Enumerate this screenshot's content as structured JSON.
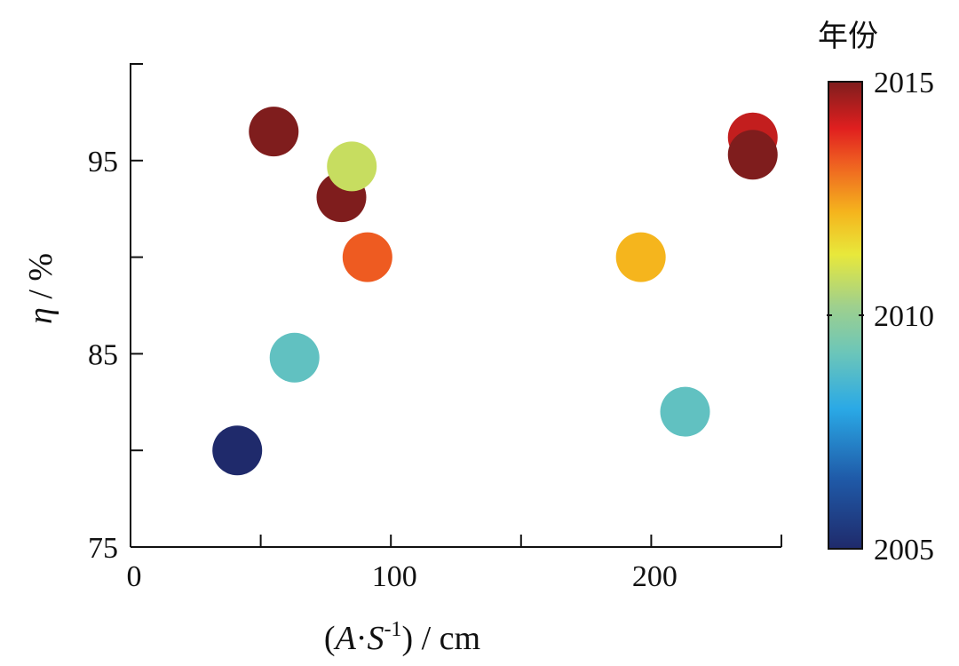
{
  "chart_data": {
    "type": "scatter",
    "title": "",
    "xlabel_parts": {
      "open": "(",
      "A": "A",
      "dot": "·",
      "S": "S",
      "sup": "-1",
      "close": ")",
      "unit": " / cm"
    },
    "ylabel_parts": {
      "eta": "η",
      "unit": " / %"
    },
    "xlim": [
      0,
      250
    ],
    "ylim": [
      75,
      100
    ],
    "x_ticks": [
      0,
      50,
      100,
      150,
      200,
      250
    ],
    "x_tick_labels": [
      "0",
      "",
      "100",
      "",
      "200",
      ""
    ],
    "y_ticks": [
      75,
      80,
      85,
      90,
      95,
      100
    ],
    "y_tick_labels": [
      "75",
      "",
      "85",
      "",
      "95",
      ""
    ],
    "colorbar": {
      "title": "年份",
      "min": 2005,
      "max": 2015,
      "ticks": [
        2005,
        2010,
        2015
      ],
      "tick_labels": [
        "2005",
        "2010",
        "2015"
      ],
      "colormap": "jet-like"
    },
    "series": [
      {
        "points": [
          {
            "x": 41,
            "y": 80,
            "year": 2005
          },
          {
            "x": 55,
            "y": 96.5,
            "year": 2015
          },
          {
            "x": 63,
            "y": 84.8,
            "year": 2009
          },
          {
            "x": 81,
            "y": 93.1,
            "year": 2015
          },
          {
            "x": 85,
            "y": 94.7,
            "year": 2010.8
          },
          {
            "x": 91,
            "y": 90,
            "year": 2013.3
          },
          {
            "x": 196,
            "y": 90,
            "year": 2012.2
          },
          {
            "x": 213,
            "y": 82,
            "year": 2009
          },
          {
            "x": 239,
            "y": 96.2,
            "year": 2014.3
          },
          {
            "x": 239,
            "y": 95.3,
            "year": 2015
          }
        ]
      }
    ],
    "grid": false,
    "legend": "colorbar-right"
  }
}
